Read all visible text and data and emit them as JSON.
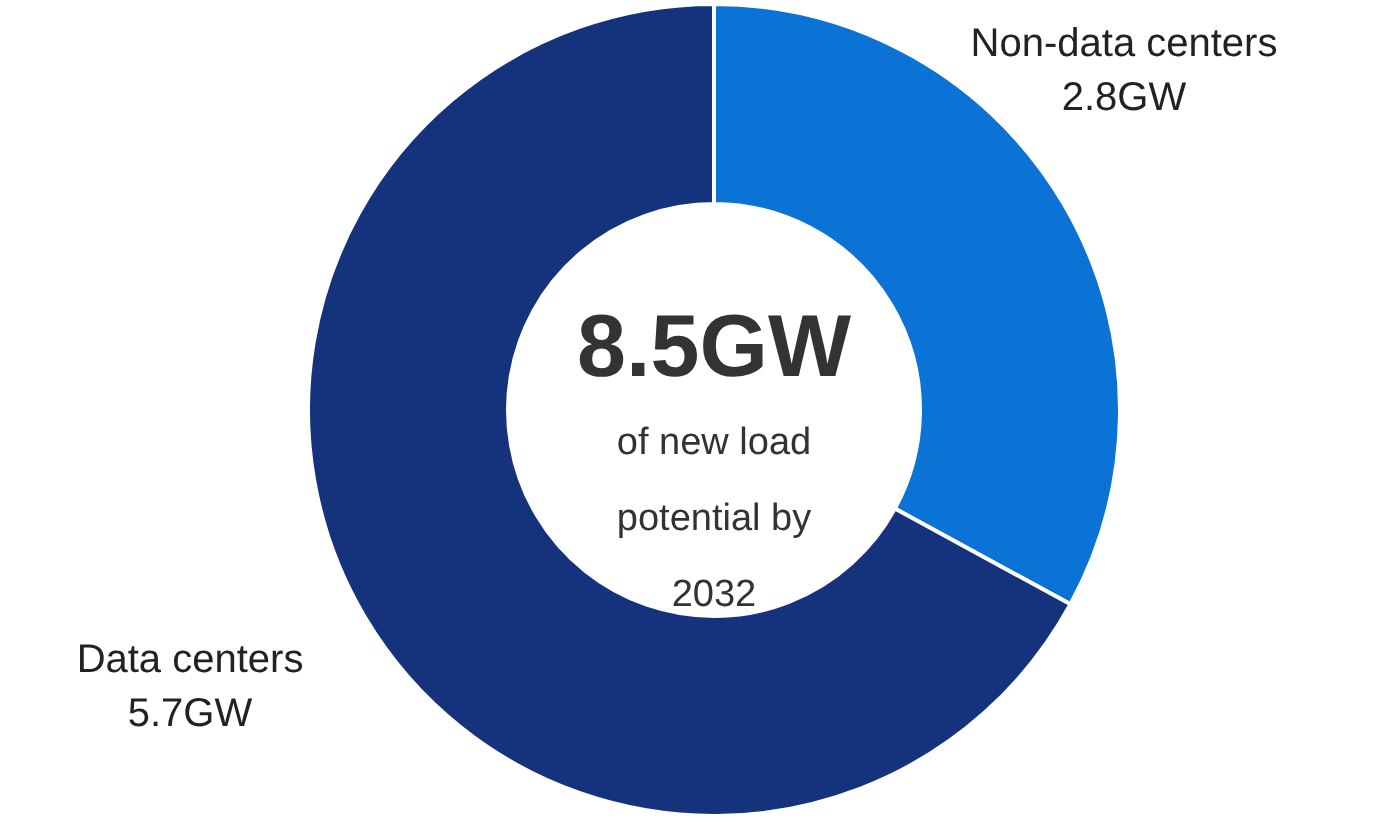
{
  "chart_data": {
    "type": "donut",
    "categories": [
      "Non-data centers",
      "Data centers"
    ],
    "values": [
      2.8,
      5.7
    ],
    "value_labels": [
      "2.8GW",
      "5.7GW"
    ],
    "colors": [
      "#0b72d6",
      "#15337d"
    ],
    "annotations": [
      "8.5GW",
      "of new load\npotential by\n2032"
    ]
  }
}
